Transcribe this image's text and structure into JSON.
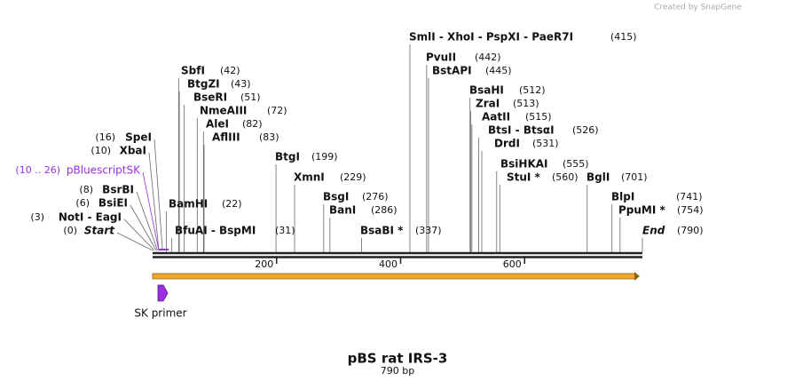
{
  "watermark": "Created by SnapGene",
  "title": "pBS rat IRS-3",
  "subtitle": "790 bp",
  "ruler": [
    "200",
    "400",
    "600"
  ],
  "primer": "SK primer",
  "sites": [
    {
      "name": "SmlI  - XhoI  - PspXI  - PaeR7I",
      "pos": "(415)"
    },
    {
      "name": "PvuII",
      "pos": "(442)"
    },
    {
      "name": "BstAPI",
      "pos": "(445)"
    },
    {
      "name": "BsaHI",
      "pos": "(512)"
    },
    {
      "name": "ZraI",
      "pos": "(513)"
    },
    {
      "name": "AatII",
      "pos": "(515)"
    },
    {
      "name": "BtsI  - BtsαI",
      "pos": "(526)"
    },
    {
      "name": "DrdI",
      "pos": "(531)"
    },
    {
      "name": "BsiHKAI",
      "pos": "(555)"
    },
    {
      "name": "StuI *",
      "pos": "(560)"
    },
    {
      "name": "BglI",
      "pos": "(701)"
    },
    {
      "name": "BlpI",
      "pos": "(741)"
    },
    {
      "name": "PpuMI *",
      "pos": "(754)"
    },
    {
      "name": "End",
      "pos": "(790)"
    },
    {
      "name": "BtgI",
      "pos": "(199)"
    },
    {
      "name": "XmnI",
      "pos": "(229)"
    },
    {
      "name": "BsgI",
      "pos": "(276)"
    },
    {
      "name": "BanI",
      "pos": "(286)"
    },
    {
      "name": "BsaBI *",
      "pos": "(337)"
    },
    {
      "name": "SbfI",
      "pos": "(42)"
    },
    {
      "name": "BtgZI",
      "pos": "(43)"
    },
    {
      "name": "BseRI",
      "pos": "(51)"
    },
    {
      "name": "NmeAIII",
      "pos": "(72)"
    },
    {
      "name": "AleI",
      "pos": "(82)"
    },
    {
      "name": "AflIII",
      "pos": "(83)"
    },
    {
      "name": "BamHI",
      "pos": "(22)"
    },
    {
      "name": "BfuAI  - BspMI",
      "pos": "(31)"
    },
    {
      "name": "SpeI",
      "pos": "(16)"
    },
    {
      "name": "XbaI",
      "pos": "(10)"
    },
    {
      "name": "pBluescriptSK",
      "pos": "(10 .. 26)"
    },
    {
      "name": "BsrBI",
      "pos": "(8)"
    },
    {
      "name": "BsiEI",
      "pos": "(6)"
    },
    {
      "name": "NotI  - EagI",
      "pos": "(3)"
    },
    {
      "name": "Start",
      "pos": "(0)"
    }
  ]
}
